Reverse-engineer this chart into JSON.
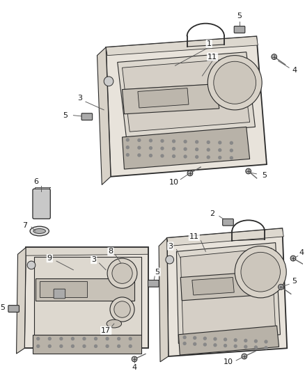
{
  "bg_color": "#ffffff",
  "line_color": "#2a2a2a",
  "label_color": "#1a1a1a",
  "fig_width": 4.38,
  "fig_height": 5.33,
  "dpi": 100,
  "panel_face": "#e8e3db",
  "panel_inner": "#ddd8cf",
  "panel_dark": "#c8c2b8",
  "grille_color": "#b8b2a8",
  "trim_color": "#d8d2c8"
}
